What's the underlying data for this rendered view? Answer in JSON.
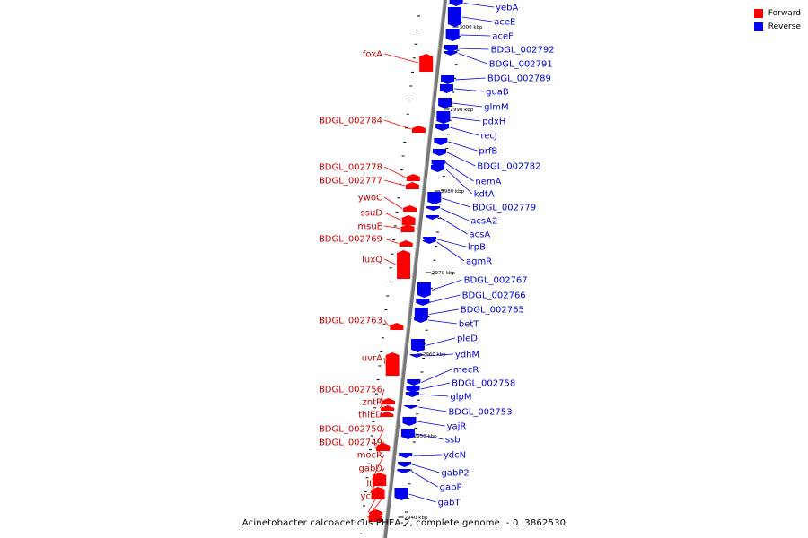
{
  "legend": [
    {
      "label": "Forward",
      "color": "#ff0000"
    },
    {
      "label": "Reverse",
      "color": "#0000ff"
    }
  ],
  "caption": "Acinetobacter calcoaceticus PHEA-2, complete genome. - 0..3862530",
  "tick_labels": [
    "3000 kbp",
    "2990 kbp",
    "2980 kbp",
    "2970 kbp",
    "2960 kbp",
    "2950 kbp",
    "2940 kbp"
  ],
  "forward_genes": [
    "foxA",
    "BDGL_002784",
    "BDGL_002778",
    "BDGL_002777",
    "ywoC",
    "ssuD",
    "msuE",
    "BDGL_002769",
    "luxQ",
    "BDGL_002763",
    "uvrA",
    "BDGL_002756",
    "zntR",
    "thiED",
    "BDGL_002750",
    "BDGL_002749",
    "mocR",
    "gabD",
    "ltrA",
    "ycaC"
  ],
  "reverse_genes": [
    "yebA",
    "aceE",
    "aceF",
    "BDGL_002792",
    "BDGL_002791",
    "BDGL_002789",
    "guaB",
    "glmM",
    "pdxH",
    "recJ",
    "prfB",
    "BDGL_002782",
    "nemA",
    "kdtA",
    "BDGL_002779",
    "acsA2",
    "acsA",
    "lrpB",
    "agmR",
    "BDGL_002767",
    "BDGL_002766",
    "BDGL_002765",
    "betT",
    "pleD",
    "ydhM",
    "mecR",
    "BDGL_002758",
    "glpM",
    "BDGL_002753",
    "yajR",
    "ssb",
    "ydcN",
    "gabP2",
    "gabP",
    "gabT"
  ]
}
